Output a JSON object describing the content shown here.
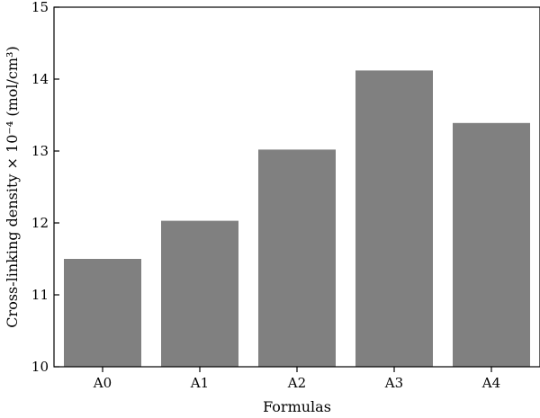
{
  "chart_data": {
    "type": "bar",
    "title": "",
    "xlabel": "Formulas",
    "ylabel": "Cross-linking density × 10⁻⁴ (mol/cm³)",
    "categories": [
      "A0",
      "A1",
      "A2",
      "A3",
      "A4"
    ],
    "values": [
      11.5,
      12.03,
      13.02,
      14.12,
      13.39
    ],
    "ylim": [
      10,
      15
    ],
    "yticks": [
      10,
      11,
      12,
      13,
      14,
      15
    ],
    "grid": false,
    "legend": "none",
    "bar_color": "#808080"
  }
}
